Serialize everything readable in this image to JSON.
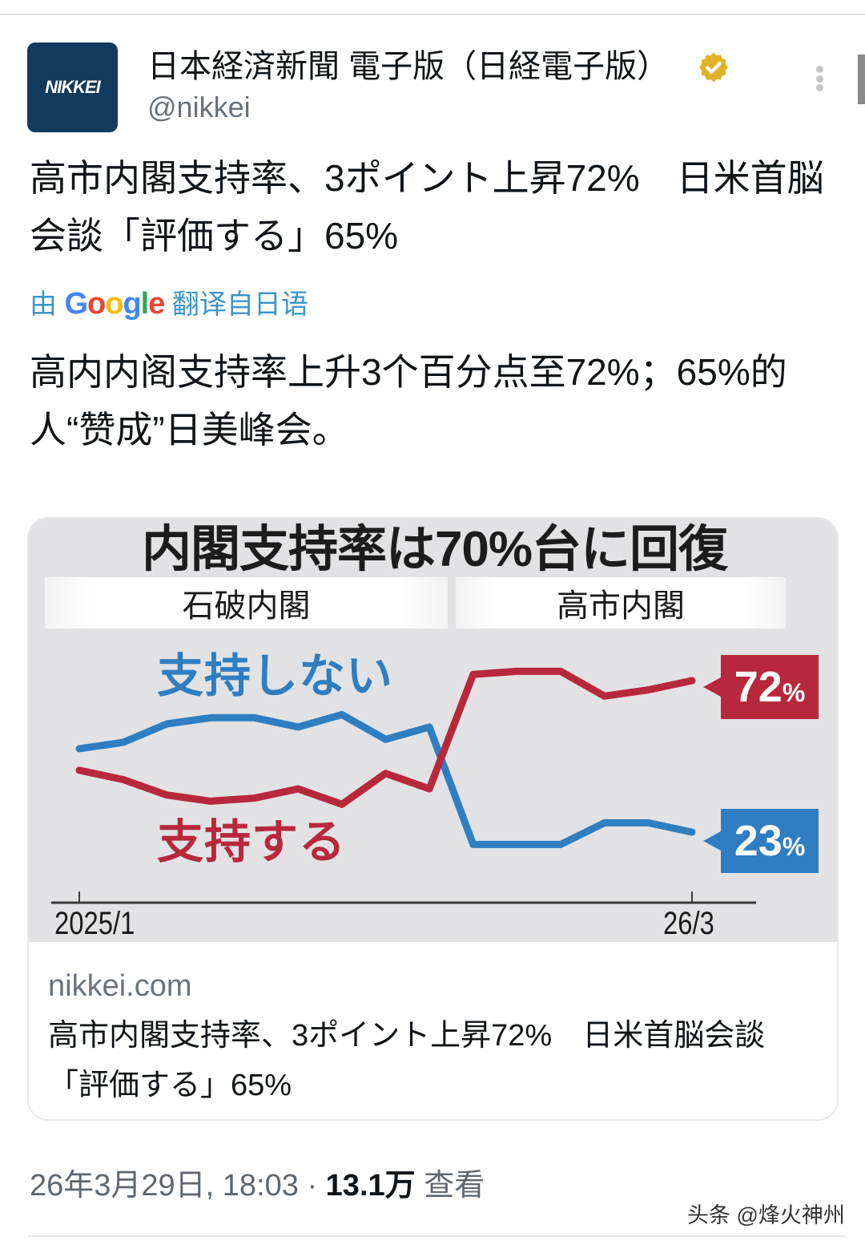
{
  "header": {
    "avatar_text": "NIKKEI",
    "display_name": "日本経済新聞 電子版（日経電子版）",
    "handle": "@nikkei",
    "verified": true,
    "verified_color": "#e0b22a",
    "more_icon": "more-vertical-icon"
  },
  "tweet": {
    "original_text": "高市内閣支持率、3ポイント上昇72%　日米首脳会談「評価する」65%",
    "translation_prefix": "由",
    "translation_brand": "Google",
    "translation_suffix": "翻译自日语",
    "translated_text": "高内内阁支持率上升3个百分点至72%；65%的人“赞成”日美峰会。"
  },
  "card": {
    "domain": "nikkei.com",
    "title": "高市内閣支持率、3ポイント上昇72%　日米首脳会談「評価する」65%"
  },
  "meta": {
    "timestamp": "26年3月29日, 18:03",
    "separator": " · ",
    "views_count": "13.1万",
    "views_label": "查看"
  },
  "watermark": "头条 @烽火神州",
  "chart_data": {
    "type": "line",
    "title": "内閣支持率は70%台に回復",
    "periods": [
      {
        "label": "石破内閣"
      },
      {
        "label": "高市内閣"
      }
    ],
    "xlabel": "",
    "ylabel": "",
    "x_tick_labels": [
      "2025/1",
      "26/3"
    ],
    "x": [
      1,
      2,
      3,
      4,
      5,
      6,
      7,
      8,
      9,
      10,
      11,
      12,
      13,
      14,
      15
    ],
    "ylim": [
      10,
      85
    ],
    "grid": false,
    "legend_position": "inline",
    "series": [
      {
        "name": "支持しない",
        "color": "#2f7ec2",
        "values": [
          50,
          52,
          58,
          60,
          60,
          57,
          61,
          53,
          57,
          19,
          19,
          19,
          26,
          26,
          23
        ],
        "end_label": "23",
        "end_label_unit": "%"
      },
      {
        "name": "支持する",
        "color": "#b8283c",
        "values": [
          43,
          40,
          35,
          33,
          34,
          37,
          32,
          42,
          37,
          74,
          75,
          75,
          67,
          69,
          72
        ],
        "end_label": "72",
        "end_label_unit": "%"
      }
    ]
  }
}
